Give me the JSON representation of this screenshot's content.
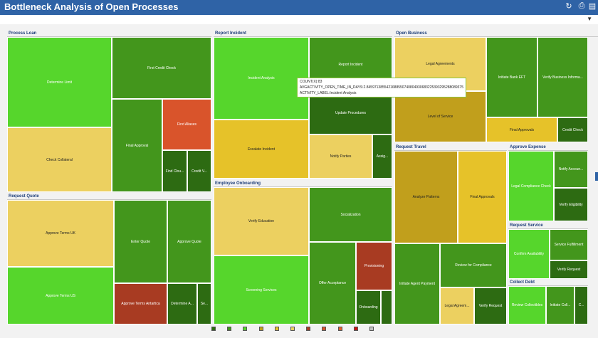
{
  "title": "Bottleneck Analysis of Open Processes",
  "toolbar": {
    "refresh_icon": "refresh-icon",
    "print_icon": "print-icon",
    "export_icon": "export-icon",
    "menu_icon": "chevron-down-icon"
  },
  "colors": {
    "header_bg": "#2f63a6",
    "dark_green": "#2d6b12",
    "mid_green": "#43961c",
    "light_green": "#56d62c",
    "yellow_light": "#ecd060",
    "yellow": "#e6c229",
    "yellow_dark": "#c19f1c",
    "orange": "#d9542b",
    "red_dark": "#a83b22"
  },
  "tooltip": {
    "count": "COUNT(X):83",
    "avg": "AVGACTIVITY_OPEN_TIME_IN_DAYS:2.845971385542168855074080493068322539329528808937​5",
    "label": "ACTIVITY_LABEL:Incident Analysis"
  },
  "chart_data": {
    "type": "treemap",
    "title": "Bottleneck Analysis of Open Processes",
    "size_measure": "COUNT(X)",
    "color_measure": "AVGACTIVITY_OPEN_TIME_IN_DAYS",
    "groups": [
      {
        "name": "Process Loan",
        "activities": [
          {
            "label": "Determine Limit",
            "color": "light_green"
          },
          {
            "label": "Check Collateral",
            "color": "yellow_light"
          },
          {
            "label": "First Credit Check",
            "color": "mid_green"
          },
          {
            "label": "Final Approval",
            "color": "mid_green"
          },
          {
            "label": "Find Aliases",
            "color": "orange"
          },
          {
            "label": "Find Clou...",
            "color": "dark_green"
          },
          {
            "label": "Credit V...",
            "color": "dark_green"
          }
        ]
      },
      {
        "name": "Report Incident",
        "activities": [
          {
            "label": "Incident Analysis",
            "color": "light_green",
            "count": 83,
            "avg_open_days": 2.845971385542169
          },
          {
            "label": "Report Incident",
            "color": "mid_green"
          },
          {
            "label": "Update Procedures",
            "color": "dark_green"
          },
          {
            "label": "Escalate Incident",
            "color": "yellow"
          },
          {
            "label": "Notify Parties",
            "color": "yellow_light"
          },
          {
            "label": "Assig...",
            "color": "dark_green"
          }
        ]
      },
      {
        "name": "Open Business",
        "activities": [
          {
            "label": "Legal Agreements",
            "color": "yellow_light"
          },
          {
            "label": "Level of Service",
            "color": "yellow_dark"
          },
          {
            "label": "Initiate Bank EFT",
            "color": "mid_green"
          },
          {
            "label": "Verify Business Informa...",
            "color": "mid_green"
          },
          {
            "label": "Final Approvals",
            "color": "yellow"
          },
          {
            "label": "Credit Check",
            "color": "dark_green"
          }
        ]
      },
      {
        "name": "Request Quote",
        "activities": [
          {
            "label": "Approve Terms UK",
            "color": "yellow_light"
          },
          {
            "label": "Approve Terms US",
            "color": "light_green"
          },
          {
            "label": "Enter Quote",
            "color": "mid_green"
          },
          {
            "label": "Approve Quote",
            "color": "mid_green"
          },
          {
            "label": "Approve Terms Antartica",
            "color": "red_dark"
          },
          {
            "label": "Determine A...",
            "color": "dark_green"
          },
          {
            "label": "Se...",
            "color": "dark_green"
          }
        ]
      },
      {
        "name": "Employee Onboarding",
        "activities": [
          {
            "label": "Verify Education",
            "color": "yellow_light"
          },
          {
            "label": "Screening Services",
            "color": "light_green"
          },
          {
            "label": "Socialization",
            "color": "mid_green"
          },
          {
            "label": "Offer Acceptance",
            "color": "mid_green"
          },
          {
            "label": "Provisioning",
            "color": "red_dark"
          },
          {
            "label": "Onboarding",
            "color": "dark_green"
          },
          {
            "label": "",
            "color": "dark_green"
          }
        ]
      },
      {
        "name": "Request Travel",
        "activities": [
          {
            "label": "Analyze Patterns",
            "color": "yellow_dark"
          },
          {
            "label": "Final Approvals",
            "color": "yellow"
          },
          {
            "label": "Initiate Agent Payment",
            "color": "mid_green"
          },
          {
            "label": "Review for Compliance",
            "color": "mid_green"
          },
          {
            "label": "Legal Agreem...",
            "color": "yellow_light"
          },
          {
            "label": "Verify Request",
            "color": "dark_green"
          }
        ]
      },
      {
        "name": "Approve Expense",
        "activities": [
          {
            "label": "Legal Compliance Check",
            "color": "light_green"
          },
          {
            "label": "Notify Accoun...",
            "color": "mid_green"
          },
          {
            "label": "Verify Eligibility",
            "color": "dark_green"
          }
        ]
      },
      {
        "name": "Request Service",
        "activities": [
          {
            "label": "Confirm Availability",
            "color": "light_green"
          },
          {
            "label": "Service Fulfillment",
            "color": "mid_green"
          },
          {
            "label": "Verify Request",
            "color": "dark_green"
          }
        ]
      },
      {
        "name": "Collect Debt",
        "activities": [
          {
            "label": "Review Collectibles",
            "color": "light_green"
          },
          {
            "label": "Initiate Coll...",
            "color": "mid_green"
          },
          {
            "label": "C...",
            "color": "dark_green"
          }
        ]
      }
    ],
    "legend_colors": [
      "#2d6b12",
      "#43961c",
      "#56d62c",
      "#c19f1c",
      "#e6c229",
      "#ecd060",
      "#a83b22",
      "#d9542b",
      "#e06030",
      "#cc1010",
      "#c0c0c0"
    ]
  }
}
